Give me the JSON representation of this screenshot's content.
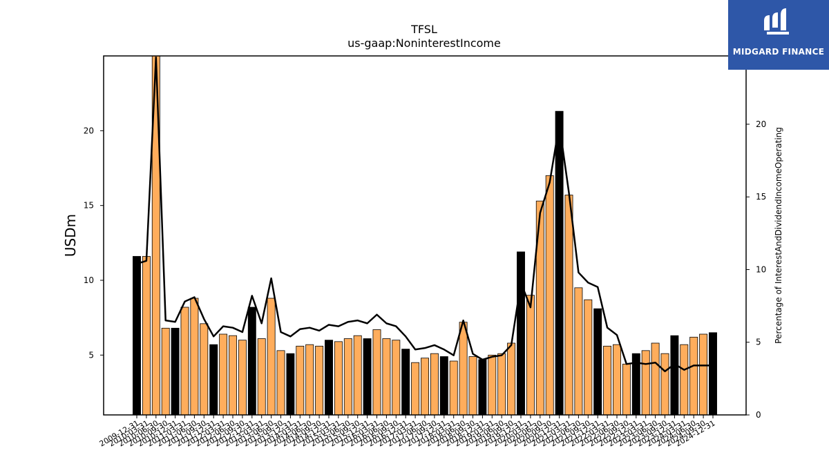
{
  "chart_data": {
    "type": "bar",
    "title": "TFSL",
    "subtitle": "us-gaap:NoninterestIncome",
    "ylabel": "USDm",
    "ylabel_right": "Percentage of InterestAndDividendIncomeOperating",
    "ylim": [
      1,
      25
    ],
    "yticks": [
      5,
      10,
      15,
      20
    ],
    "ylim_right": [
      0,
      24.7
    ],
    "yticks_right": [
      0,
      5,
      10,
      15,
      20
    ],
    "grid": false,
    "colors": {
      "quarterly": "#ffad5c",
      "annual": "#000000",
      "line": "#000000"
    },
    "categories": [
      "2009-12-31",
      "2010-03-31",
      "2010-06-30",
      "2010-09-30",
      "2010-12-31",
      "2011-03-31",
      "2011-06-30",
      "2011-09-30",
      "2011-12-31",
      "2012-03-31",
      "2012-06-30",
      "2012-09-30",
      "2012-12-31",
      "2013-03-31",
      "2013-06-30",
      "2013-09-30",
      "2013-12-31",
      "2014-03-31",
      "2014-06-30",
      "2014-09-30",
      "2014-12-31",
      "2015-03-31",
      "2015-06-30",
      "2015-09-30",
      "2015-12-31",
      "2016-03-31",
      "2016-06-30",
      "2016-09-30",
      "2016-12-31",
      "2017-03-31",
      "2017-06-30",
      "2017-09-30",
      "2017-12-31",
      "2018-03-31",
      "2018-06-30",
      "2018-09-30",
      "2018-12-31",
      "2019-03-31",
      "2019-06-30",
      "2019-09-30",
      "2019-12-31",
      "2020-03-31",
      "2020-06-30",
      "2020-09-30",
      "2020-12-31",
      "2021-03-31",
      "2021-06-30",
      "2021-09-30",
      "2021-12-31",
      "2022-03-31",
      "2022-06-30",
      "2022-09-30",
      "2022-12-31",
      "2023-03-31",
      "2023-06-30",
      "2023-09-30",
      "2023-12-31",
      "2024-03-31",
      "2024-06-30",
      "2024-09-30",
      "2024-12-31"
    ],
    "series": [
      {
        "values": [
          11.6,
          11.6,
          25.0,
          6.8,
          6.8,
          8.2,
          8.8,
          7.1,
          5.7,
          6.4,
          6.3,
          6.0,
          8.2,
          6.1,
          8.8,
          5.3,
          5.1,
          5.6,
          5.7,
          5.6,
          6.0,
          5.9,
          6.1,
          6.3,
          6.1,
          6.7,
          6.1,
          6.0,
          5.4,
          4.5,
          4.8,
          5.1,
          4.9,
          4.6,
          7.2,
          4.9,
          4.7,
          5.0,
          5.1,
          5.8,
          11.9,
          9.0,
          15.3,
          17.0,
          21.3,
          15.7,
          9.5,
          8.7,
          8.1,
          5.6,
          5.7,
          4.4,
          5.1,
          5.3,
          5.8,
          5.1,
          6.3,
          5.7,
          6.2,
          6.4,
          6.5
        ],
        "annual_flags": [
          1,
          0,
          0,
          0,
          1,
          0,
          0,
          0,
          1,
          0,
          0,
          0,
          1,
          0,
          0,
          0,
          1,
          0,
          0,
          0,
          1,
          0,
          0,
          0,
          1,
          0,
          0,
          0,
          1,
          0,
          0,
          0,
          1,
          0,
          0,
          0,
          1,
          0,
          0,
          0,
          1,
          0,
          0,
          0,
          1,
          0,
          0,
          0,
          1,
          0,
          0,
          0,
          1,
          0,
          0,
          0,
          1,
          0,
          0,
          0,
          1
        ]
      },
      {
        "axis": "right",
        "type": "line",
        "values": [
          10.4,
          10.6,
          24.6,
          6.5,
          6.4,
          7.8,
          8.1,
          6.6,
          5.4,
          6.1,
          6.0,
          5.7,
          8.2,
          6.3,
          9.4,
          5.7,
          5.4,
          5.9,
          6.0,
          5.8,
          6.2,
          6.1,
          6.4,
          6.5,
          6.3,
          6.9,
          6.3,
          6.1,
          5.4,
          4.5,
          4.6,
          4.8,
          4.5,
          4.1,
          6.5,
          4.2,
          3.8,
          4.0,
          4.1,
          4.8,
          9.1,
          7.4,
          13.9,
          16.0,
          20.0,
          15.3,
          9.8,
          9.1,
          8.8,
          6.0,
          5.5,
          3.5,
          3.6,
          3.5,
          3.6,
          3.0,
          3.5,
          3.1,
          3.4,
          3.4,
          3.4
        ]
      }
    ]
  },
  "logo": {
    "text": "MIDGARD FINANCE"
  }
}
